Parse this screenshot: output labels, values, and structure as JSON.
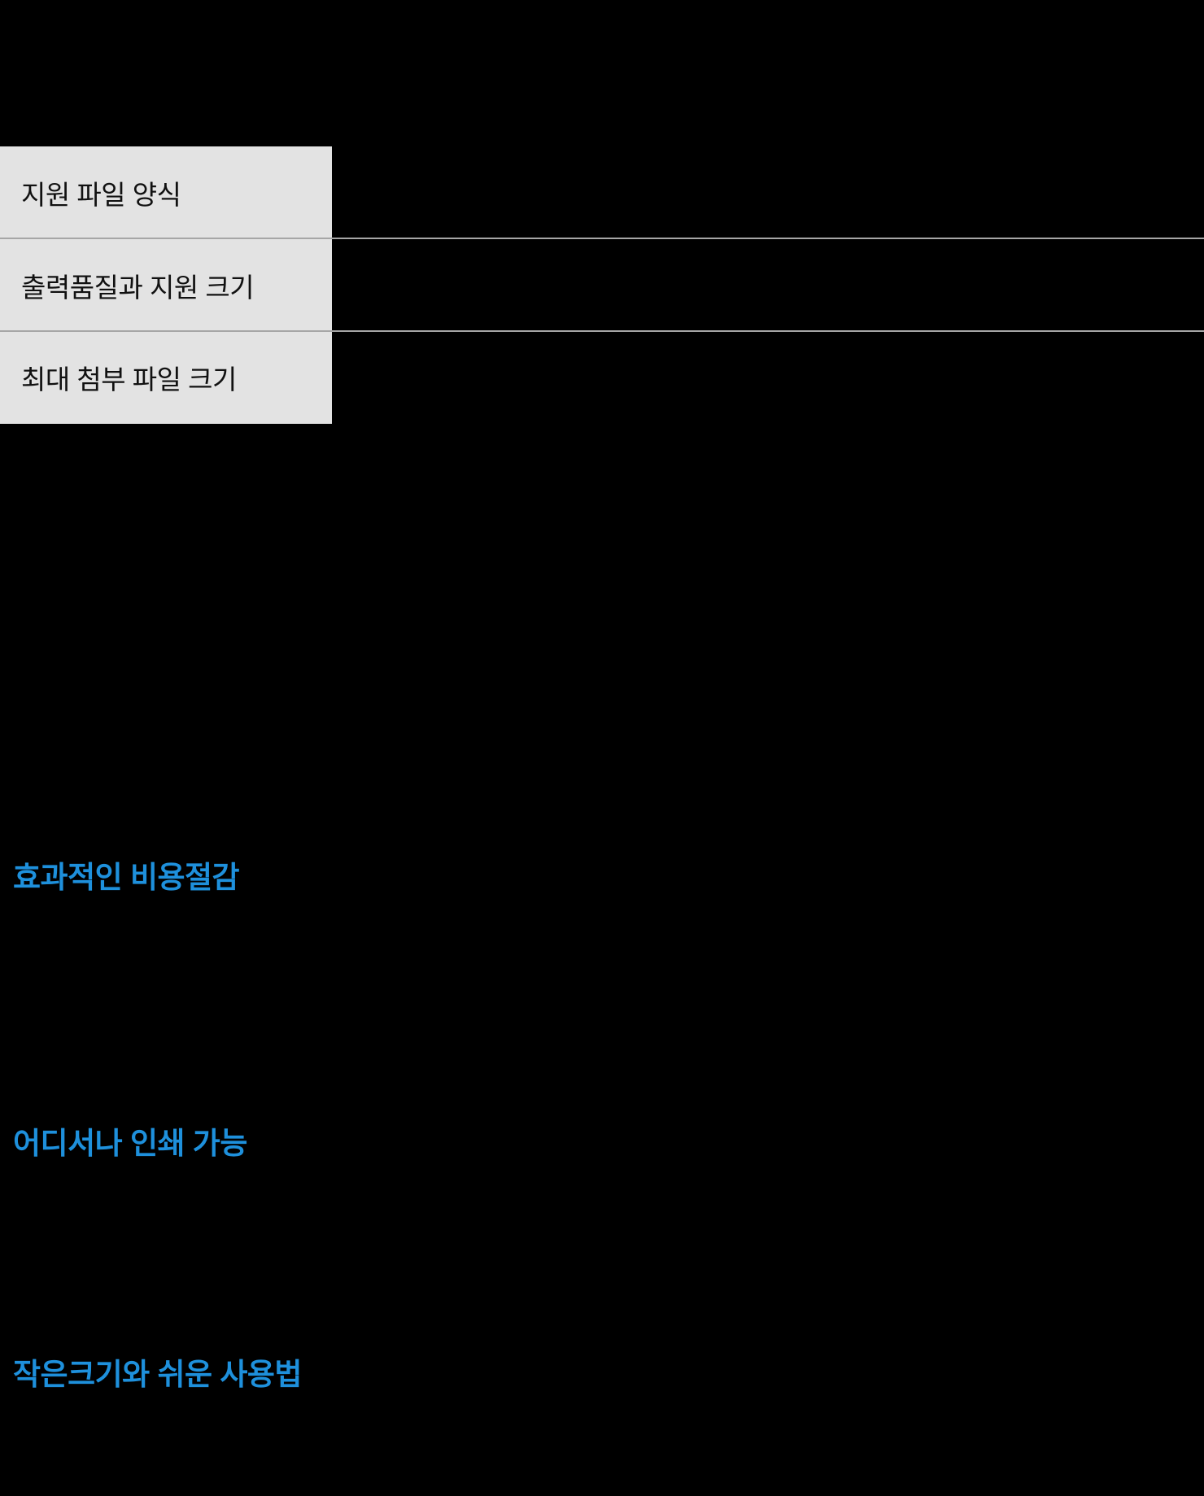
{
  "page": {
    "background_color": "#000000",
    "accent_blue": "#1e90dc",
    "panel_color": "#e3e3e3",
    "divider_color": "#a6a6a6",
    "menu_text_color": "#111111"
  },
  "faq_menu": {
    "items": [
      {
        "label": "지원 파일 양식"
      },
      {
        "label": "출력품질과 지원 크기"
      },
      {
        "label": "최대 첨부 파일 크기"
      }
    ]
  },
  "sections": [
    {
      "title": "효과적인 비용절감"
    },
    {
      "title": "어디서나 인쇄 가능"
    },
    {
      "title": "작은크기와 쉬운 사용법"
    }
  ]
}
